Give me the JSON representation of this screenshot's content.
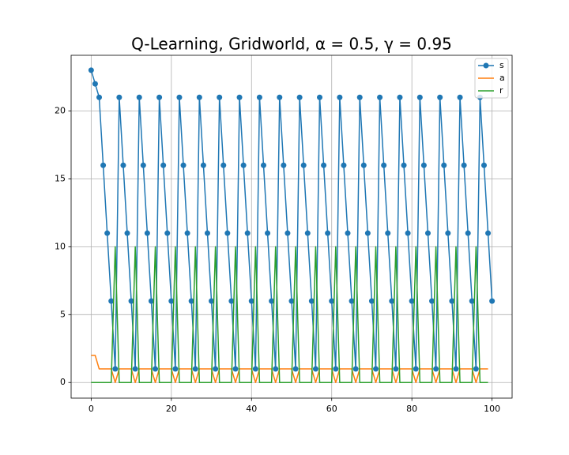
{
  "chart_data": {
    "type": "line",
    "title": "Q-Learning, Gridworld, α = 0.5, γ = 0.95",
    "x": [
      0,
      1,
      2,
      3,
      4,
      5,
      6,
      7,
      8,
      9,
      10,
      11,
      12,
      13,
      14,
      15,
      16,
      17,
      18,
      19,
      20,
      21,
      22,
      23,
      24,
      25,
      26,
      27,
      28,
      29,
      30,
      31,
      32,
      33,
      34,
      35,
      36,
      37,
      38,
      39,
      40,
      41,
      42,
      43,
      44,
      45,
      46,
      47,
      48,
      49,
      50,
      51,
      52,
      53,
      54,
      55,
      56,
      57,
      58,
      59,
      60,
      61,
      62,
      63,
      64,
      65,
      66,
      67,
      68,
      69,
      70,
      71,
      72,
      73,
      74,
      75,
      76,
      77,
      78,
      79,
      80,
      81,
      82,
      83,
      84,
      85,
      86,
      87,
      88,
      89,
      90,
      91,
      92,
      93,
      94,
      95,
      96,
      97,
      98,
      99,
      100
    ],
    "series": [
      {
        "name": "s",
        "color": "#1f77b4",
        "marker": "o",
        "values": [
          23,
          22,
          21,
          16,
          11,
          6,
          1,
          21,
          16,
          11,
          6,
          1,
          21,
          16,
          11,
          6,
          1,
          21,
          16,
          11,
          6,
          1,
          21,
          16,
          11,
          6,
          1,
          21,
          16,
          11,
          6,
          1,
          21,
          16,
          11,
          6,
          1,
          21,
          16,
          11,
          6,
          1,
          21,
          16,
          11,
          6,
          1,
          21,
          16,
          11,
          6,
          1,
          21,
          16,
          11,
          6,
          1,
          21,
          16,
          11,
          6,
          1,
          21,
          16,
          11,
          6,
          1,
          21,
          16,
          11,
          6,
          1,
          21,
          16,
          11,
          6,
          1,
          21,
          16,
          11,
          6,
          1,
          21,
          16,
          11,
          6,
          1,
          21,
          16,
          11,
          6,
          1,
          21,
          16,
          11,
          6,
          1,
          21,
          16,
          11,
          6
        ]
      },
      {
        "name": "a",
        "color": "#ff7f0e",
        "values": [
          2,
          2,
          1,
          1,
          1,
          1,
          0,
          1,
          1,
          1,
          1,
          0,
          1,
          1,
          1,
          1,
          0,
          1,
          1,
          1,
          1,
          0,
          1,
          1,
          1,
          1,
          0,
          1,
          1,
          1,
          1,
          0,
          1,
          1,
          1,
          1,
          0,
          1,
          1,
          1,
          1,
          0,
          1,
          1,
          1,
          1,
          0,
          1,
          1,
          1,
          1,
          0,
          1,
          1,
          1,
          1,
          0,
          1,
          1,
          1,
          1,
          0,
          1,
          1,
          1,
          1,
          0,
          1,
          1,
          1,
          1,
          0,
          1,
          1,
          1,
          1,
          0,
          1,
          1,
          1,
          1,
          0,
          1,
          1,
          1,
          1,
          0,
          1,
          1,
          1,
          1,
          0,
          1,
          1,
          1,
          1,
          0,
          1,
          1,
          1,
          null
        ]
      },
      {
        "name": "r",
        "color": "#2ca02c",
        "values": [
          0,
          0,
          0,
          0,
          0,
          0,
          10,
          0,
          0,
          0,
          0,
          10,
          0,
          0,
          0,
          0,
          10,
          0,
          0,
          0,
          0,
          10,
          0,
          0,
          0,
          0,
          10,
          0,
          0,
          0,
          0,
          10,
          0,
          0,
          0,
          0,
          10,
          0,
          0,
          0,
          0,
          10,
          0,
          0,
          0,
          0,
          10,
          0,
          0,
          0,
          0,
          10,
          0,
          0,
          0,
          0,
          10,
          0,
          0,
          0,
          0,
          10,
          0,
          0,
          0,
          0,
          10,
          0,
          0,
          0,
          0,
          10,
          0,
          0,
          0,
          0,
          10,
          0,
          0,
          0,
          0,
          10,
          0,
          0,
          0,
          0,
          10,
          0,
          0,
          0,
          0,
          10,
          0,
          0,
          0,
          0,
          10,
          0,
          0,
          0,
          null
        ]
      }
    ],
    "xlim": [
      -5,
      105
    ],
    "xticks": [
      0,
      20,
      40,
      60,
      80,
      100
    ],
    "ylim": [
      -1.15,
      24.1
    ],
    "yticks": [
      0,
      5,
      10,
      15,
      20
    ],
    "grid": true,
    "legend": "upper right"
  }
}
